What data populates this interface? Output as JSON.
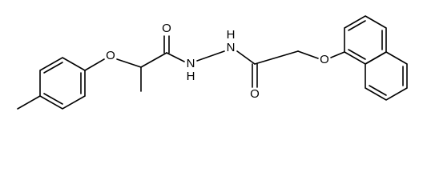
{
  "atoms": [
    "O",
    "O",
    "N",
    "H",
    "N",
    "H",
    "O",
    "O"
  ]
}
